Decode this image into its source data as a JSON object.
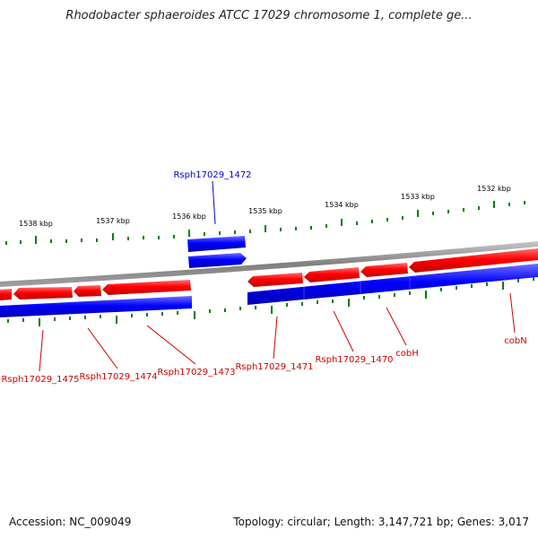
{
  "title": "Rhodobacter sphaeroides ATCC 17029 chromosome 1, complete ge...",
  "accession": "Accession: NC_009049",
  "summary": "Topology: circular; Length: 3,147,721 bp; Genes: 3,017",
  "colors": {
    "forward_gene": "#ff0000",
    "reverse_gene": "#0000ff",
    "tick": "#008000",
    "backbone": "#808080",
    "forward_label": "#cc0000",
    "reverse_label": "#0000cc"
  },
  "kbp_labels": [
    "1538 kbp",
    "1537 kbp",
    "1536 kbp",
    "1535 kbp",
    "1534 kbp",
    "1533 kbp",
    "1532 kbp"
  ],
  "gene_labels": [
    {
      "text": "Rsph17029_1472",
      "strand": "reverse"
    },
    {
      "text": "Rsph17029_1475",
      "strand": "forward"
    },
    {
      "text": "Rsph17029_1474",
      "strand": "forward"
    },
    {
      "text": "Rsph17029_1473",
      "strand": "forward"
    },
    {
      "text": "Rsph17029_1471",
      "strand": "forward"
    },
    {
      "text": "Rsph17029_1470",
      "strand": "forward"
    },
    {
      "text": "cobH",
      "strand": "forward"
    },
    {
      "text": "cobN",
      "strand": "forward"
    }
  ]
}
